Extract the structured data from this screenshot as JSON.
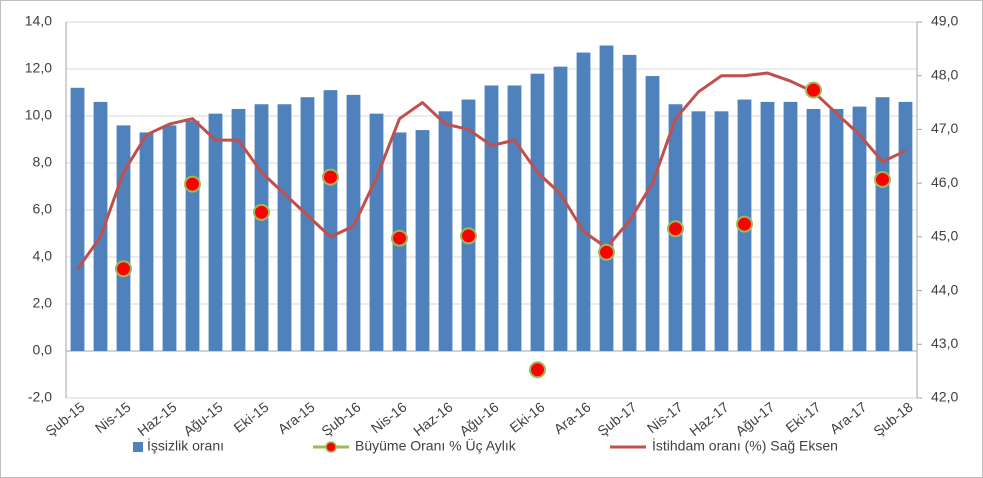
{
  "chart_data": {
    "type": "bar-scatter-line",
    "categories": [
      "Şub-15",
      null,
      "Nis-15",
      null,
      "Haz-15",
      null,
      "Ağu-15",
      null,
      "Eki-15",
      null,
      "Ara-15",
      null,
      "Şub-16",
      null,
      "Nis-16",
      null,
      "Haz-16",
      null,
      "Ağu-16",
      null,
      "Eki-16",
      null,
      "Ara-16",
      null,
      "Şub-17",
      null,
      "Nis-17",
      null,
      "Haz-17",
      null,
      "Ağu-17",
      null,
      "Eki-17",
      null,
      "Ara-17",
      null,
      "Şub-18"
    ],
    "series": [
      {
        "name": "İşsizlik oranı",
        "type": "bar",
        "color": "#4f81bd",
        "values": [
          11.2,
          10.6,
          9.6,
          9.3,
          9.6,
          9.8,
          10.1,
          10.3,
          10.5,
          10.5,
          10.8,
          11.1,
          10.9,
          10.1,
          9.3,
          9.4,
          10.2,
          10.7,
          11.3,
          11.3,
          11.8,
          12.1,
          12.7,
          13.0,
          12.6,
          11.7,
          10.5,
          10.2,
          10.2,
          10.7,
          10.6,
          10.6,
          10.3,
          10.3,
          10.4,
          10.8,
          10.6
        ]
      },
      {
        "name": "Büyüme Oranı % Üç Aylık",
        "type": "scatter",
        "color": "#ff0000",
        "edge_color": "#9bbb59",
        "values": [
          null,
          null,
          3.5,
          null,
          null,
          7.1,
          null,
          null,
          5.9,
          null,
          null,
          7.4,
          null,
          null,
          4.8,
          null,
          null,
          4.9,
          null,
          null,
          -0.8,
          null,
          null,
          4.2,
          null,
          null,
          5.2,
          null,
          null,
          5.4,
          null,
          null,
          11.1,
          null,
          null,
          7.3,
          null
        ]
      },
      {
        "name": "İstihdam oranı (%) Sağ Eksen",
        "type": "line",
        "axis": "y2",
        "color": "#c0504d",
        "values": [
          44.4,
          45.0,
          46.2,
          46.9,
          47.1,
          47.2,
          46.8,
          46.8,
          46.2,
          45.8,
          45.4,
          45.0,
          45.2,
          46.1,
          47.2,
          47.5,
          47.1,
          47.0,
          46.7,
          46.8,
          46.2,
          45.8,
          45.1,
          44.8,
          45.3,
          46.0,
          47.2,
          47.7,
          48.0,
          48.0,
          48.05,
          47.9,
          47.7,
          47.3,
          46.9,
          46.4,
          46.6
        ]
      }
    ],
    "ylim": [
      -2,
      14
    ],
    "yticks": [
      {
        "value": -2,
        "label": "-2,0"
      },
      {
        "value": 0,
        "label": "0,0"
      },
      {
        "value": 2,
        "label": "2,0"
      },
      {
        "value": 4,
        "label": "4,0"
      },
      {
        "value": 6,
        "label": "6,0"
      },
      {
        "value": 8,
        "label": "8,0"
      },
      {
        "value": 10,
        "label": "10,0"
      },
      {
        "value": 12,
        "label": "12,0"
      },
      {
        "value": 14,
        "label": "14,0"
      }
    ],
    "y2lim": [
      42,
      49
    ],
    "y2ticks": [
      {
        "value": 42,
        "label": "42,0"
      },
      {
        "value": 43,
        "label": "43,0"
      },
      {
        "value": 44,
        "label": "44,0"
      },
      {
        "value": 45,
        "label": "45,0"
      },
      {
        "value": 46,
        "label": "46,0"
      },
      {
        "value": 47,
        "label": "47,0"
      },
      {
        "value": 48,
        "label": "48,0"
      },
      {
        "value": 49,
        "label": "49,0"
      }
    ],
    "grid": true,
    "legend": "bottom"
  }
}
